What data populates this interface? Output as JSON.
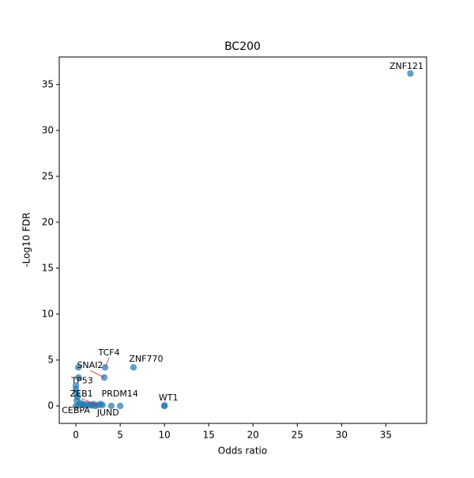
{
  "chart_data": {
    "type": "scatter",
    "title": "BC200",
    "x_label": "Odds ratio",
    "y_label": "-Log10 FDR",
    "xlim": [
      -1.88,
      39.6
    ],
    "ylim": [
      -1.9,
      38.0
    ],
    "xticks": [
      0,
      5,
      10,
      15,
      20,
      25,
      30,
      35
    ],
    "yticks": [
      0,
      5,
      10,
      15,
      20,
      25,
      30,
      35
    ],
    "series": [
      {
        "color": "#1f77b4",
        "x": [
          37.77,
          3.3,
          6.5,
          3.2,
          0.27,
          0.3,
          0.0,
          0.0,
          2.5,
          3.0,
          10.0,
          0.0,
          2.2,
          4.0,
          5.0,
          10.0,
          0.1,
          0.2,
          0.5,
          0.8,
          1.0,
          1.3,
          1.6,
          2.0,
          2.8,
          0.05,
          0.3,
          1.8
        ],
        "y": [
          36.2,
          4.2,
          4.2,
          3.1,
          4.2,
          3.1,
          2.2,
          1.8,
          0.1,
          0.1,
          0.0,
          0.0,
          0.0,
          0.0,
          0.0,
          0.05,
          0.6,
          1.0,
          0.3,
          0.2,
          0.1,
          0.15,
          0.1,
          0.2,
          0.2,
          1.4,
          0.1,
          0.05
        ],
        "labels": [
          "ZNF121",
          "TCF4",
          "ZNF770",
          "SNAI2",
          null,
          null,
          "TP53",
          null,
          "ZEB1",
          "PRDM14",
          "WT1",
          "CEBPA",
          "JUND",
          null,
          null,
          null,
          null,
          null,
          null,
          null,
          null,
          null,
          null,
          null,
          null,
          null,
          null,
          null
        ]
      }
    ]
  }
}
